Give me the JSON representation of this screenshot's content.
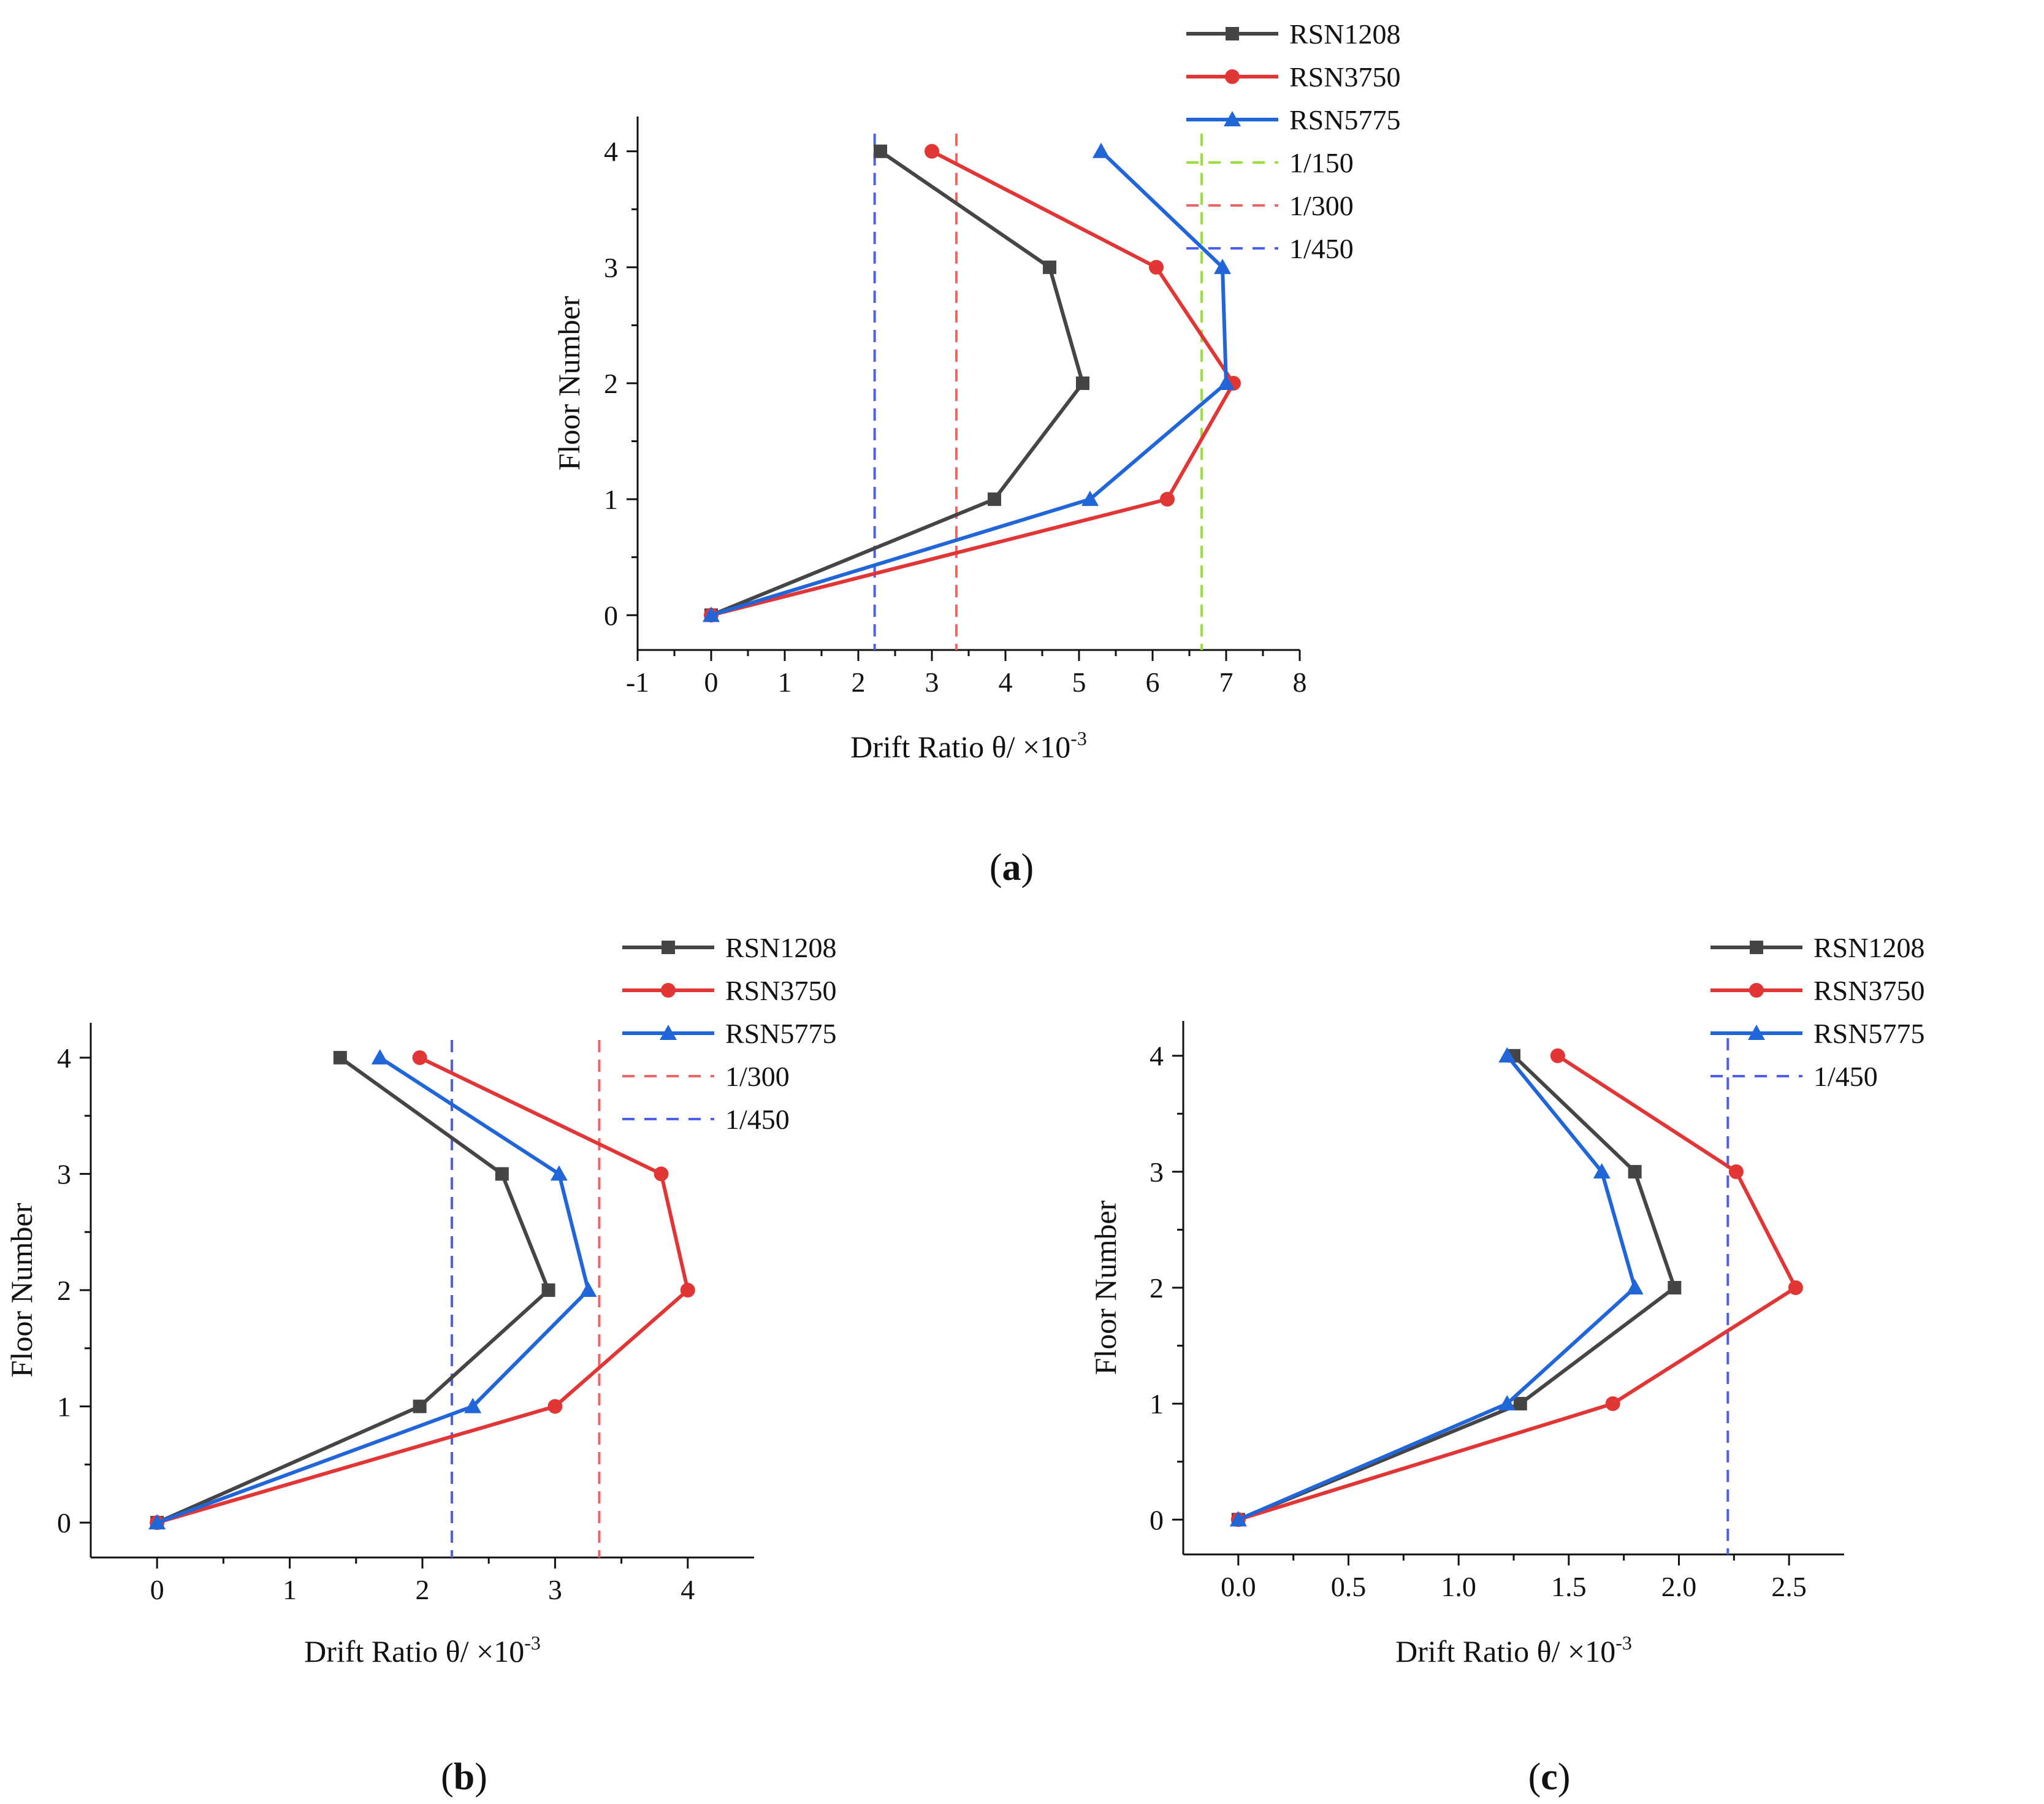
{
  "chart_data": [
    {
      "type": "line",
      "panel": "a",
      "panel_label": {
        "open": "(",
        "letter": "a",
        "close": ")"
      },
      "xlabel": "Drift Ratio θ/ ×10",
      "xlabel_exponent": "-3",
      "ylabel": "Floor Number",
      "xlim": [
        -1,
        8
      ],
      "ylim": [
        -0.3,
        4.3
      ],
      "xticks": [
        -1,
        0,
        1,
        2,
        3,
        4,
        5,
        6,
        7,
        8
      ],
      "xtick_labels": [
        "-1",
        "0",
        "1",
        "2",
        "3",
        "4",
        "5",
        "6",
        "7",
        "8"
      ],
      "yticks": [
        0,
        1,
        2,
        3,
        4
      ],
      "ytick_labels": [
        "0",
        "1",
        "2",
        "3",
        "4"
      ],
      "series": [
        {
          "name": "RSN1208",
          "color": "#454545",
          "marker": "square",
          "x": [
            0,
            3.85,
            5.05,
            4.6,
            2.3
          ],
          "y": [
            0,
            1,
            2,
            3,
            4
          ]
        },
        {
          "name": "RSN3750",
          "color": "#e23636",
          "marker": "circle",
          "x": [
            0,
            6.2,
            7.1,
            6.05,
            3.0
          ],
          "y": [
            0,
            1,
            2,
            3,
            4
          ]
        },
        {
          "name": "RSN5775",
          "color": "#2166d9",
          "marker": "triangle",
          "x": [
            0,
            5.15,
            7.0,
            6.95,
            5.3
          ],
          "y": [
            0,
            1,
            2,
            3,
            4
          ]
        }
      ],
      "reference_lines": [
        {
          "name": "1/150",
          "x": 6.667,
          "color": "#99e03c"
        },
        {
          "name": "1/300",
          "x": 3.333,
          "color": "#f06464"
        },
        {
          "name": "1/450",
          "x": 2.222,
          "color": "#4d5ff0"
        }
      ],
      "legend_position": "top-right outside"
    },
    {
      "type": "line",
      "panel": "b",
      "panel_label": {
        "open": "(",
        "letter": "b",
        "close": ")"
      },
      "xlabel": "Drift Ratio θ/ ×10",
      "xlabel_exponent": "-3",
      "ylabel": "Floor Number",
      "xlim": [
        -0.5,
        4.5
      ],
      "ylim": [
        -0.3,
        4.3
      ],
      "xticks": [
        0,
        1,
        2,
        3,
        4
      ],
      "xtick_labels": [
        "0",
        "1",
        "2",
        "3",
        "4"
      ],
      "yticks": [
        0,
        1,
        2,
        3,
        4
      ],
      "ytick_labels": [
        "0",
        "1",
        "2",
        "3",
        "4"
      ],
      "series": [
        {
          "name": "RSN1208",
          "color": "#454545",
          "marker": "square",
          "x": [
            0,
            1.98,
            2.95,
            2.6,
            1.38
          ],
          "y": [
            0,
            1,
            2,
            3,
            4
          ]
        },
        {
          "name": "RSN3750",
          "color": "#e23636",
          "marker": "circle",
          "x": [
            0,
            3.0,
            4.0,
            3.8,
            1.98
          ],
          "y": [
            0,
            1,
            2,
            3,
            4
          ]
        },
        {
          "name": "RSN5775",
          "color": "#2166d9",
          "marker": "triangle",
          "x": [
            0,
            2.38,
            3.25,
            3.03,
            1.68
          ],
          "y": [
            0,
            1,
            2,
            3,
            4
          ]
        }
      ],
      "reference_lines": [
        {
          "name": "1/300",
          "x": 3.333,
          "color": "#f06464"
        },
        {
          "name": "1/450",
          "x": 2.222,
          "color": "#4d5ff0"
        }
      ],
      "legend_position": "top-right"
    },
    {
      "type": "line",
      "panel": "c",
      "panel_label": {
        "open": "(",
        "letter": "c",
        "close": ")"
      },
      "xlabel": "Drift Ratio θ/ ×10",
      "xlabel_exponent": "-3",
      "ylabel": "Floor Number",
      "xlim": [
        -0.25,
        2.75
      ],
      "ylim": [
        -0.3,
        4.3
      ],
      "xticks": [
        0.0,
        0.5,
        1.0,
        1.5,
        2.0,
        2.5
      ],
      "xtick_labels": [
        "0.0",
        "0.5",
        "1.0",
        "1.5",
        "2.0",
        "2.5"
      ],
      "yticks": [
        0,
        1,
        2,
        3,
        4
      ],
      "ytick_labels": [
        "0",
        "1",
        "2",
        "3",
        "4"
      ],
      "series": [
        {
          "name": "RSN1208",
          "color": "#454545",
          "marker": "square",
          "x": [
            0,
            1.28,
            1.98,
            1.8,
            1.25
          ],
          "y": [
            0,
            1,
            2,
            3,
            4
          ]
        },
        {
          "name": "RSN3750",
          "color": "#e23636",
          "marker": "circle",
          "x": [
            0,
            1.7,
            2.53,
            2.26,
            1.45
          ],
          "y": [
            0,
            1,
            2,
            3,
            4
          ]
        },
        {
          "name": "RSN5775",
          "color": "#2166d9",
          "marker": "triangle",
          "x": [
            0,
            1.22,
            1.8,
            1.65,
            1.22
          ],
          "y": [
            0,
            1,
            2,
            3,
            4
          ]
        }
      ],
      "reference_lines": [
        {
          "name": "1/450",
          "x": 2.222,
          "color": "#4d5ff0"
        }
      ],
      "legend_position": "top-right outside"
    }
  ]
}
